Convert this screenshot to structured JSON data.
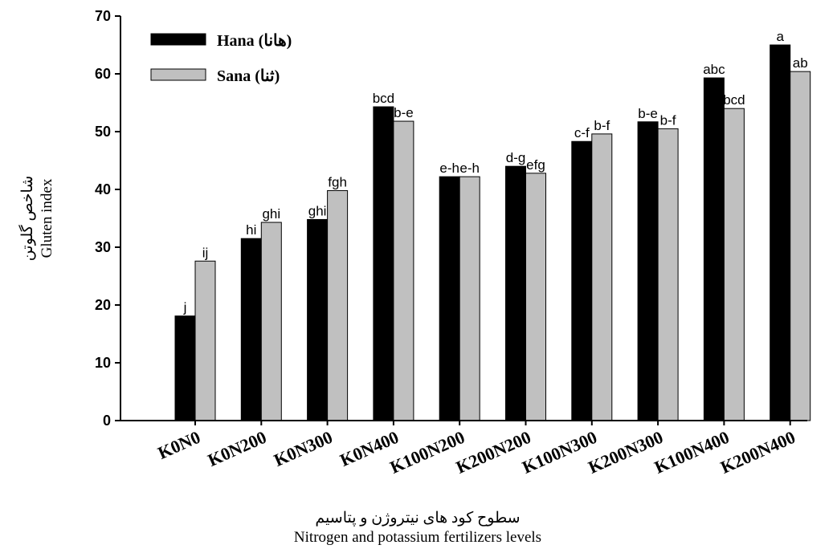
{
  "chart_data": {
    "type": "bar",
    "categories": [
      "K0N0",
      "K0N200",
      "K0N300",
      "K0N400",
      "K100N200",
      "K200N200",
      "K100N300",
      "K200N300",
      "K100N400",
      "K200N400"
    ],
    "series": [
      {
        "name": "Hana (هانا)",
        "color": "#000000",
        "values": [
          18.1,
          31.5,
          34.8,
          54.3,
          42.2,
          44.0,
          48.3,
          51.7,
          59.3,
          65.0
        ],
        "labels": [
          "j",
          "hi",
          "ghi",
          "bcd",
          "e-h",
          "d-g",
          "c-f",
          "b-e",
          "abc",
          "a"
        ]
      },
      {
        "name": "Sana (ثنا)",
        "color": "#c0c0c0",
        "values": [
          27.6,
          34.3,
          39.8,
          51.8,
          42.2,
          42.8,
          49.6,
          50.5,
          54.0,
          60.4
        ],
        "labels": [
          "ij",
          "ghi",
          "fgh",
          "b-e",
          "e-h",
          "efg",
          "b-f",
          "b-f",
          "bcd",
          "ab"
        ]
      }
    ],
    "ylim": [
      0,
      70
    ],
    "yticks": [
      0,
      10,
      20,
      30,
      40,
      50,
      60,
      70
    ],
    "ylabel_fa": "شاخص گلوتن",
    "ylabel": "Gluten index",
    "xlabel_fa": "سطوح کود های نیتروژن و پتاسیم",
    "xlabel": "Nitrogen and potassium fertilizers levels",
    "grid": false,
    "legend_position": "top-left"
  }
}
